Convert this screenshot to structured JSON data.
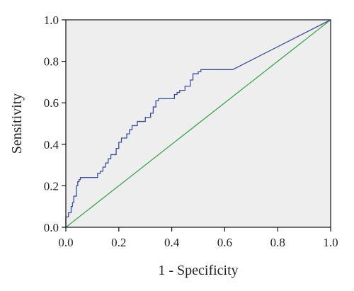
{
  "chart_data": {
    "type": "line",
    "title": "",
    "xlabel": "1 - Specificity",
    "ylabel": "Sensitivity",
    "xlim": [
      0.0,
      1.0
    ],
    "ylim": [
      0.0,
      1.0
    ],
    "xticks": [
      "0.0",
      "0.2",
      "0.4",
      "0.6",
      "0.8",
      "1.0"
    ],
    "yticks": [
      "0.0",
      "0.2",
      "0.4",
      "0.6",
      "0.8",
      "1.0"
    ],
    "grid": false,
    "legend": "none",
    "background": "#eeeeee",
    "series": [
      {
        "color": "#3a4fa0",
        "x": [
          0.0,
          0.0,
          0.01,
          0.01,
          0.02,
          0.02,
          0.025,
          0.025,
          0.03,
          0.03,
          0.04,
          0.04,
          0.045,
          0.045,
          0.05,
          0.05,
          0.055,
          0.055,
          0.12,
          0.12,
          0.13,
          0.13,
          0.14,
          0.14,
          0.15,
          0.15,
          0.16,
          0.16,
          0.17,
          0.17,
          0.19,
          0.19,
          0.2,
          0.2,
          0.21,
          0.21,
          0.23,
          0.23,
          0.24,
          0.24,
          0.25,
          0.25,
          0.27,
          0.27,
          0.3,
          0.3,
          0.32,
          0.32,
          0.33,
          0.33,
          0.34,
          0.34,
          0.35,
          0.35,
          0.41,
          0.41,
          0.42,
          0.42,
          0.43,
          0.43,
          0.45,
          0.45,
          0.47,
          0.47,
          0.48,
          0.48,
          0.5,
          0.5,
          0.51,
          0.51,
          0.63,
          1.0
        ],
        "y": [
          0.0,
          0.05,
          0.05,
          0.07,
          0.07,
          0.1,
          0.1,
          0.12,
          0.12,
          0.15,
          0.15,
          0.2,
          0.2,
          0.22,
          0.22,
          0.23,
          0.23,
          0.24,
          0.24,
          0.26,
          0.26,
          0.27,
          0.27,
          0.29,
          0.29,
          0.31,
          0.31,
          0.33,
          0.33,
          0.35,
          0.35,
          0.38,
          0.38,
          0.41,
          0.41,
          0.43,
          0.43,
          0.45,
          0.45,
          0.47,
          0.47,
          0.49,
          0.49,
          0.51,
          0.51,
          0.53,
          0.53,
          0.55,
          0.55,
          0.58,
          0.58,
          0.61,
          0.61,
          0.62,
          0.62,
          0.64,
          0.64,
          0.65,
          0.65,
          0.66,
          0.66,
          0.68,
          0.68,
          0.71,
          0.71,
          0.74,
          0.74,
          0.75,
          0.75,
          0.76,
          0.76,
          1.0
        ]
      },
      {
        "color": "#3aa84a",
        "x": [
          0.0,
          1.0
        ],
        "y": [
          0.0,
          1.0
        ]
      }
    ]
  }
}
